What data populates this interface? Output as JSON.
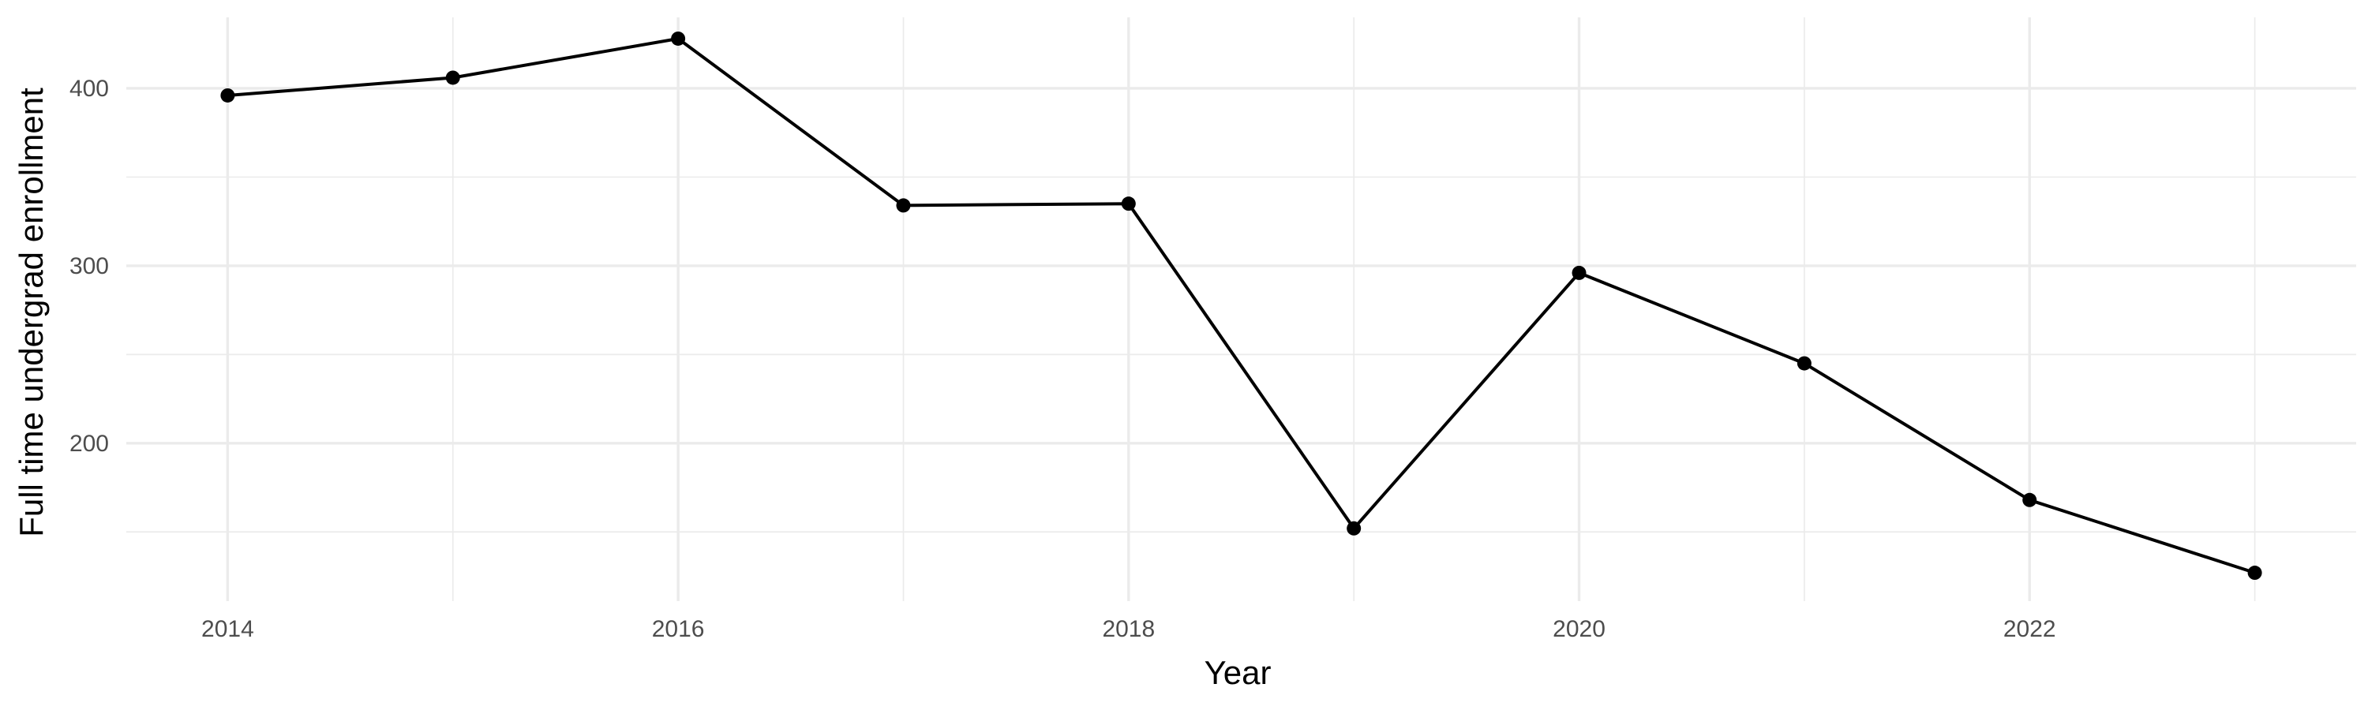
{
  "chart_data": {
    "type": "line",
    "xlabel": "Year",
    "ylabel": "Full time undergrad enrollment",
    "xlim": [
      2013.55,
      2023.45
    ],
    "ylim": [
      111,
      440
    ],
    "x_ticks": [
      2014,
      2016,
      2018,
      2020,
      2022
    ],
    "x_minor_ticks": [
      2015,
      2017,
      2019,
      2021,
      2023
    ],
    "y_ticks": [
      200,
      300,
      400
    ],
    "y_minor_ticks": [
      150,
      250,
      350
    ],
    "grid": true,
    "legend": "none",
    "line_color": "#000000",
    "point_color": "#000000",
    "series": [
      {
        "x": [
          2014,
          2015,
          2016,
          2017,
          2018,
          2019,
          2020,
          2021,
          2022,
          2023
        ],
        "values": [
          396,
          406,
          428,
          334,
          335,
          152,
          296,
          245,
          168,
          127
        ]
      }
    ]
  }
}
